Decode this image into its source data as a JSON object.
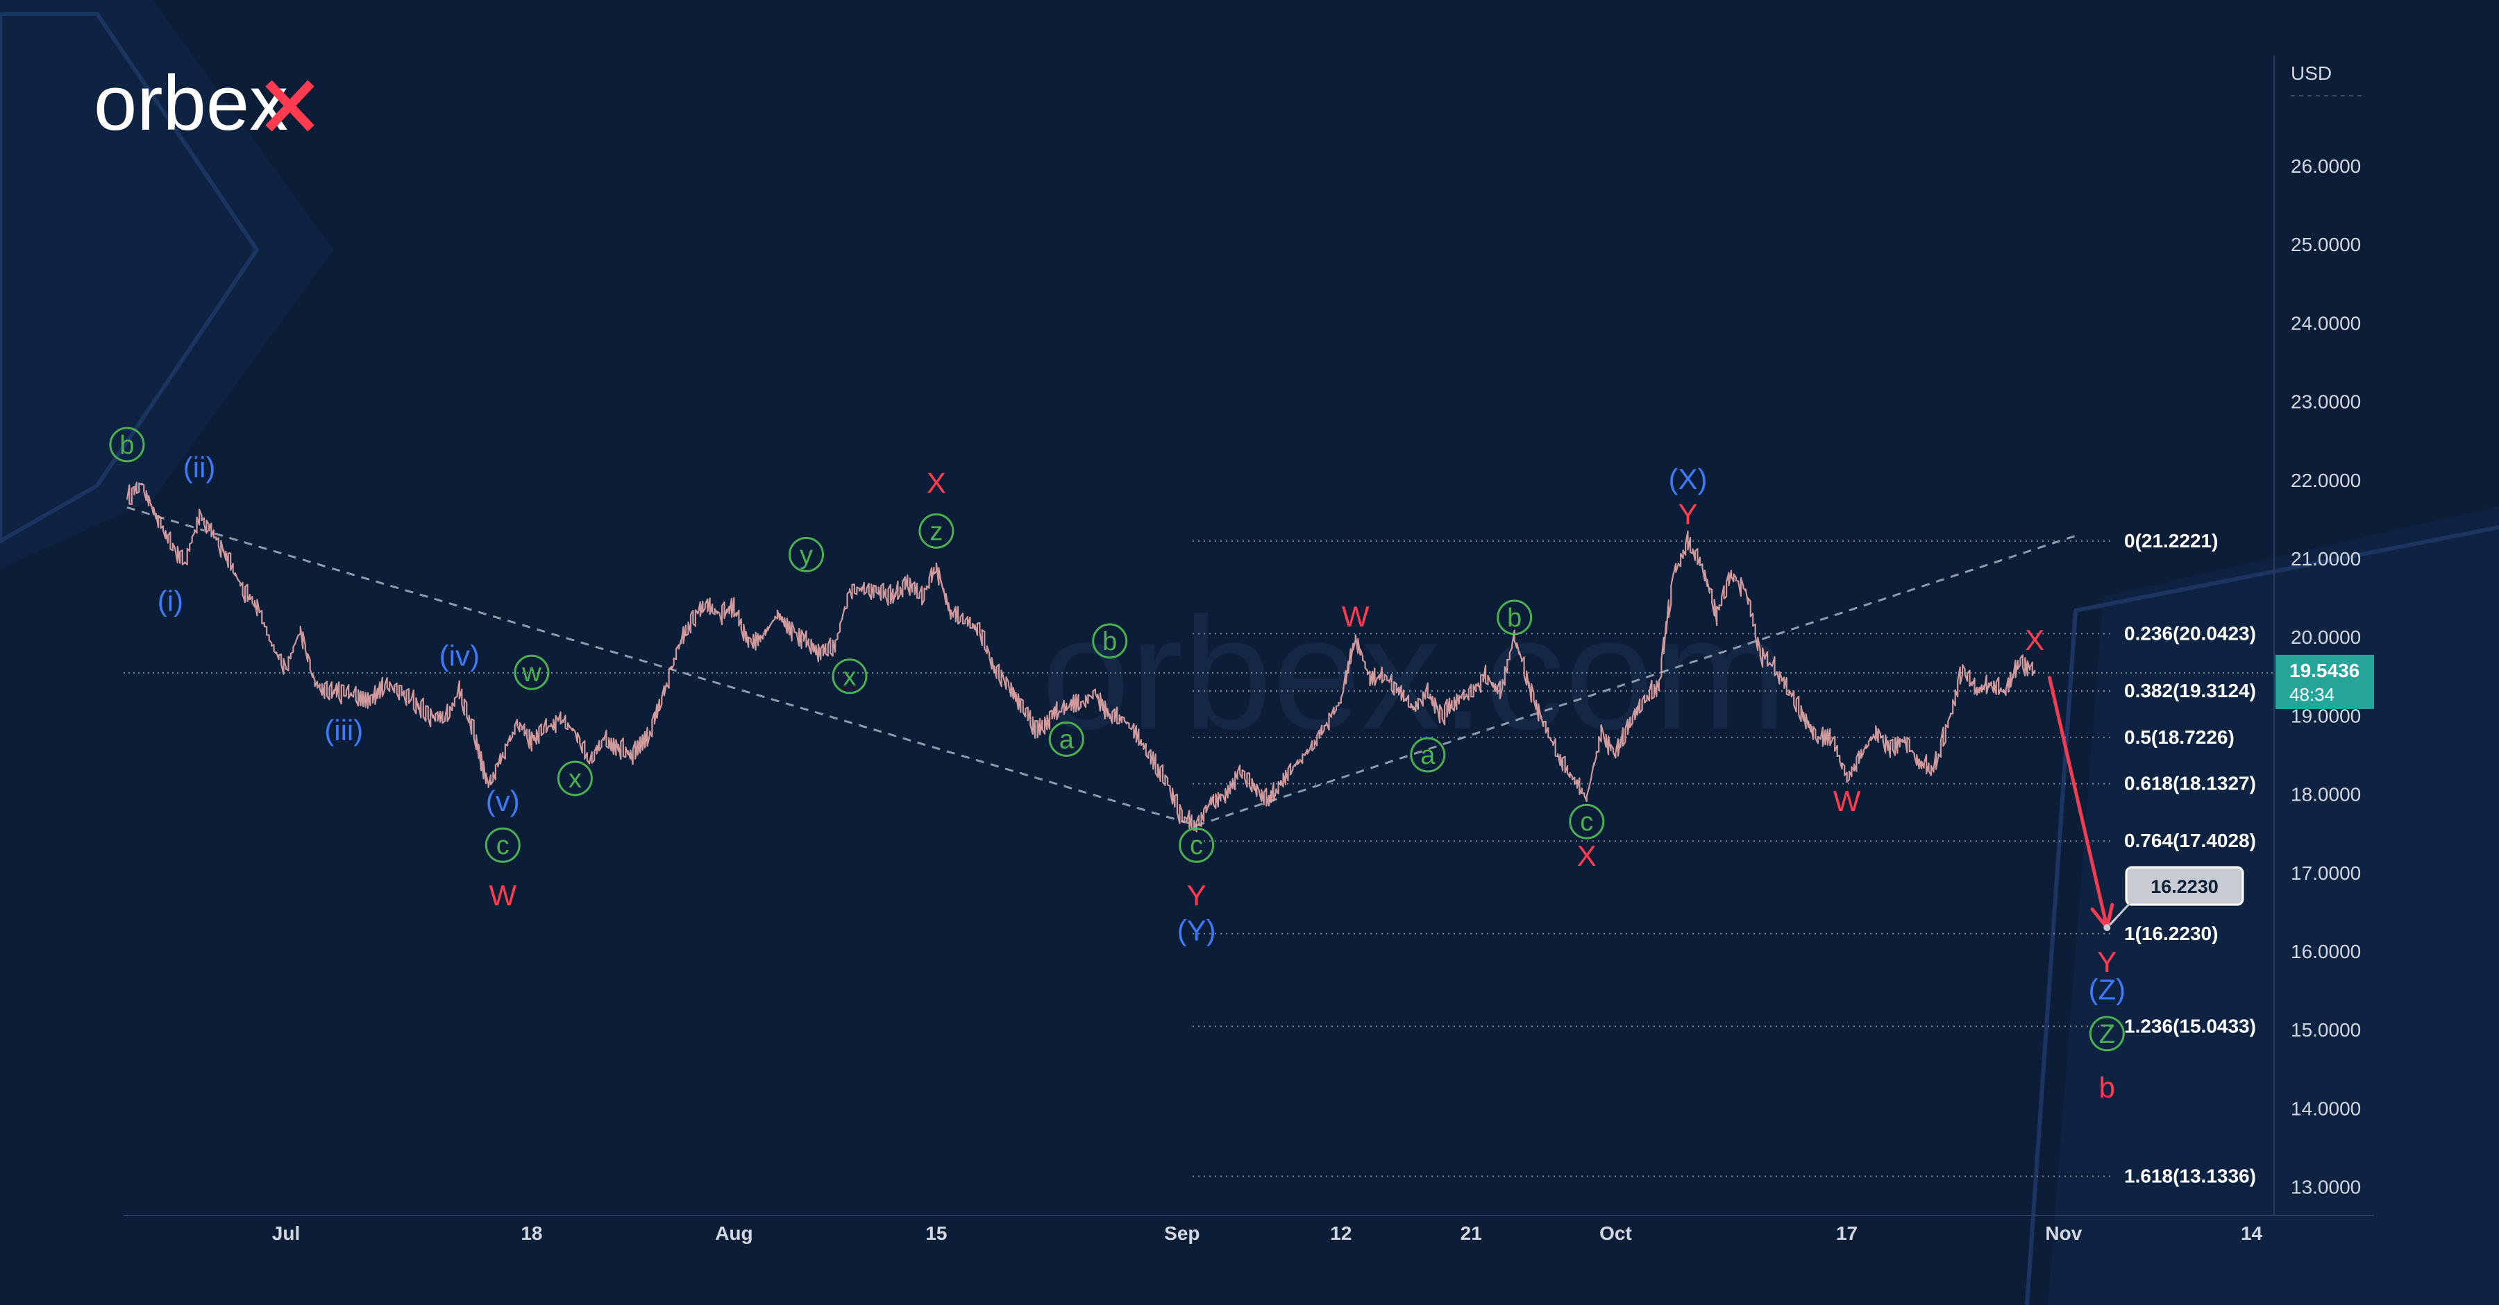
{
  "brand": {
    "logo_text": "orbex",
    "watermark_text": "orbex.com"
  },
  "colors": {
    "background": "#0c1d38",
    "candle": "#e6a9a9",
    "red_label": "#ff3b50",
    "blue_label": "#3f79f5",
    "green_label": "#4caf50",
    "price_badge": "#26a69a",
    "fib_line": "#7b8594",
    "dashed_trend": "#8f9aab",
    "projection_arrow": "#f23c52"
  },
  "icons": {
    "forecast_pointer": "arrow-head-icon"
  },
  "price_axis": {
    "currency": "USD",
    "ticks": [
      "26.0000",
      "25.0000",
      "24.0000",
      "23.0000",
      "22.0000",
      "21.0000",
      "20.0000",
      "19.0000",
      "18.0000",
      "17.0000",
      "16.0000",
      "15.0000",
      "14.0000",
      "13.0000"
    ],
    "current_price": "19.5436",
    "countdown": "48:34"
  },
  "time_axis": {
    "ticks": [
      "Jul",
      "18",
      "Aug",
      "15",
      "Sep",
      "12",
      "21",
      "Oct",
      "17",
      "Nov",
      "14"
    ]
  },
  "target_box": "16.2230",
  "chart_data": {
    "type": "line",
    "title": "",
    "xlabel": "",
    "ylabel": "USD",
    "ylim": [
      12.6,
      27.1
    ],
    "x_range": [
      "2022-06-20",
      "2022-11-16"
    ],
    "series": [
      {
        "values": [
          [
            "2022-06-20",
            21.75
          ],
          [
            "2022-06-21",
            21.95
          ],
          [
            "2022-06-22",
            21.55
          ],
          [
            "2022-06-23",
            21.2
          ],
          [
            "2022-06-24",
            20.95
          ],
          [
            "2022-06-25",
            21.55
          ],
          [
            "2022-06-26",
            21.3
          ],
          [
            "2022-06-27",
            21.0
          ],
          [
            "2022-06-28",
            20.6
          ],
          [
            "2022-06-29",
            20.4
          ],
          [
            "2022-06-30",
            19.9
          ],
          [
            "2022-07-01",
            19.6
          ],
          [
            "2022-07-02",
            20.1
          ],
          [
            "2022-07-03",
            19.4
          ],
          [
            "2022-07-04",
            19.3
          ],
          [
            "2022-07-05",
            19.3
          ],
          [
            "2022-07-06",
            19.25
          ],
          [
            "2022-07-07",
            19.2
          ],
          [
            "2022-07-08",
            19.4
          ],
          [
            "2022-07-09",
            19.3
          ],
          [
            "2022-07-10",
            19.15
          ],
          [
            "2022-07-11",
            19.0
          ],
          [
            "2022-07-12",
            18.95
          ],
          [
            "2022-07-13",
            19.3
          ],
          [
            "2022-07-14",
            18.8
          ],
          [
            "2022-07-15",
            18.1
          ],
          [
            "2022-07-16",
            18.5
          ],
          [
            "2022-07-17",
            18.9
          ],
          [
            "2022-07-18",
            18.7
          ],
          [
            "2022-07-19",
            18.85
          ],
          [
            "2022-07-20",
            18.95
          ],
          [
            "2022-07-21",
            18.8
          ],
          [
            "2022-07-22",
            18.4
          ],
          [
            "2022-07-23",
            18.7
          ],
          [
            "2022-07-24",
            18.6
          ],
          [
            "2022-07-25",
            18.5
          ],
          [
            "2022-07-26",
            18.7
          ],
          [
            "2022-07-27",
            19.2
          ],
          [
            "2022-07-28",
            19.8
          ],
          [
            "2022-07-29",
            20.2
          ],
          [
            "2022-07-30",
            20.4
          ],
          [
            "2022-07-31",
            20.3
          ],
          [
            "2022-08-01",
            20.35
          ],
          [
            "2022-08-02",
            19.95
          ],
          [
            "2022-08-03",
            20.0
          ],
          [
            "2022-08-04",
            20.3
          ],
          [
            "2022-08-05",
            20.1
          ],
          [
            "2022-08-06",
            19.95
          ],
          [
            "2022-08-07",
            19.8
          ],
          [
            "2022-08-08",
            19.9
          ],
          [
            "2022-08-09",
            20.6
          ],
          [
            "2022-08-10",
            20.6
          ],
          [
            "2022-08-11",
            20.6
          ],
          [
            "2022-08-12",
            20.5
          ],
          [
            "2022-08-13",
            20.7
          ],
          [
            "2022-08-14",
            20.5
          ],
          [
            "2022-08-15",
            20.9
          ],
          [
            "2022-08-16",
            20.3
          ],
          [
            "2022-08-17",
            20.2
          ],
          [
            "2022-08-18",
            20.1
          ],
          [
            "2022-08-19",
            19.6
          ],
          [
            "2022-08-20",
            19.4
          ],
          [
            "2022-08-21",
            19.1
          ],
          [
            "2022-08-22",
            18.8
          ],
          [
            "2022-08-23",
            19.0
          ],
          [
            "2022-08-24",
            19.1
          ],
          [
            "2022-08-25",
            19.15
          ],
          [
            "2022-08-26",
            19.3
          ],
          [
            "2022-08-27",
            19.0
          ],
          [
            "2022-08-28",
            18.95
          ],
          [
            "2022-08-29",
            18.7
          ],
          [
            "2022-08-30",
            18.4
          ],
          [
            "2022-08-31",
            18.15
          ],
          [
            "2022-09-01",
            17.7
          ],
          [
            "2022-09-02",
            17.6
          ],
          [
            "2022-09-03",
            17.9
          ],
          [
            "2022-09-04",
            18.0
          ],
          [
            "2022-09-05",
            18.3
          ],
          [
            "2022-09-06",
            18.1
          ],
          [
            "2022-09-07",
            17.9
          ],
          [
            "2022-09-08",
            18.2
          ],
          [
            "2022-09-09",
            18.4
          ],
          [
            "2022-09-10",
            18.6
          ],
          [
            "2022-09-11",
            18.9
          ],
          [
            "2022-09-12",
            19.2
          ],
          [
            "2022-09-13",
            20.0
          ],
          [
            "2022-09-14",
            19.45
          ],
          [
            "2022-09-15",
            19.5
          ],
          [
            "2022-09-16",
            19.3
          ],
          [
            "2022-09-17",
            19.1
          ],
          [
            "2022-09-18",
            19.3
          ],
          [
            "2022-09-19",
            19.0
          ],
          [
            "2022-09-20",
            19.2
          ],
          [
            "2022-09-21",
            19.3
          ],
          [
            "2022-09-22",
            19.5
          ],
          [
            "2022-09-23",
            19.3
          ],
          [
            "2022-09-24",
            20.0
          ],
          [
            "2022-09-25",
            19.4
          ],
          [
            "2022-09-26",
            18.9
          ],
          [
            "2022-09-27",
            18.5
          ],
          [
            "2022-09-28",
            18.2
          ],
          [
            "2022-09-29",
            17.95
          ],
          [
            "2022-09-30",
            18.8
          ],
          [
            "2022-10-01",
            18.5
          ],
          [
            "2022-10-02",
            18.9
          ],
          [
            "2022-10-03",
            19.2
          ],
          [
            "2022-10-04",
            19.4
          ],
          [
            "2022-10-05",
            20.8
          ],
          [
            "2022-10-06",
            21.2
          ],
          [
            "2022-10-07",
            20.9
          ],
          [
            "2022-10-08",
            20.3
          ],
          [
            "2022-10-09",
            20.8
          ],
          [
            "2022-10-10",
            20.6
          ],
          [
            "2022-10-11",
            19.8
          ],
          [
            "2022-10-12",
            19.6
          ],
          [
            "2022-10-13",
            19.3
          ],
          [
            "2022-10-14",
            19.0
          ],
          [
            "2022-10-15",
            18.7
          ],
          [
            "2022-10-16",
            18.7
          ],
          [
            "2022-10-17",
            18.2
          ],
          [
            "2022-10-18",
            18.5
          ],
          [
            "2022-10-19",
            18.8
          ],
          [
            "2022-10-20",
            18.6
          ],
          [
            "2022-10-21",
            18.7
          ],
          [
            "2022-10-22",
            18.4
          ],
          [
            "2022-10-23",
            18.3
          ],
          [
            "2022-10-24",
            18.9
          ],
          [
            "2022-10-25",
            19.6
          ],
          [
            "2022-10-26",
            19.3
          ],
          [
            "2022-10-27",
            19.4
          ],
          [
            "2022-10-28",
            19.3
          ],
          [
            "2022-10-29",
            19.7
          ],
          [
            "2022-10-30",
            19.55
          ]
        ]
      }
    ],
    "fibonacci_levels": [
      {
        "ratio": "0",
        "price": 21.2221,
        "label": "0(21.2221)"
      },
      {
        "ratio": "0.236",
        "price": 20.0423,
        "label": "0.236(20.0423)"
      },
      {
        "ratio": "0.382",
        "price": 19.3124,
        "label": "0.382(19.3124)"
      },
      {
        "ratio": "0.5",
        "price": 18.7226,
        "label": "0.5(18.7226)"
      },
      {
        "ratio": "0.618",
        "price": 18.1327,
        "label": "0.618(18.1327)"
      },
      {
        "ratio": "0.764",
        "price": 17.4028,
        "label": "0.764(17.4028)"
      },
      {
        "ratio": "1",
        "price": 16.223,
        "label": "1(16.2230)"
      },
      {
        "ratio": "1.236",
        "price": 15.0433,
        "label": "1.236(15.0433)"
      },
      {
        "ratio": "1.618",
        "price": 13.1336,
        "label": "1.618(13.1336)"
      }
    ],
    "trend_lines": [
      {
        "style": "dashed",
        "from": [
          "2022-06-20",
          21.65
        ],
        "to": [
          "2022-09-02",
          17.6
        ]
      },
      {
        "style": "dashed",
        "from": [
          "2022-09-02",
          17.6
        ],
        "to": [
          "2022-11-02",
          21.3
        ]
      }
    ],
    "projection": {
      "from": [
        "2022-10-31",
        19.5
      ],
      "to": [
        "2022-11-04",
        16.3
      ]
    },
    "wave_labels": [
      {
        "text": "b",
        "color": "green",
        "circled": true,
        "x": "2022-06-20",
        "y": 22.45
      },
      {
        "text": "(ii)",
        "color": "blue",
        "x": "2022-06-25",
        "y": 22.15
      },
      {
        "text": "(i)",
        "color": "blue",
        "x": "2022-06-23",
        "y": 20.45
      },
      {
        "text": "(iii)",
        "color": "blue",
        "x": "2022-07-05",
        "y": 18.8
      },
      {
        "text": "(iv)",
        "color": "blue",
        "x": "2022-07-13",
        "y": 19.75
      },
      {
        "text": "(v)",
        "color": "blue",
        "x": "2022-07-16",
        "y": 17.9
      },
      {
        "text": "c",
        "color": "green",
        "circled": true,
        "x": "2022-07-16",
        "y": 17.35
      },
      {
        "text": "W",
        "color": "red",
        "x": "2022-07-16",
        "y": 16.7
      },
      {
        "text": "w",
        "color": "green",
        "circled": true,
        "x": "2022-07-18",
        "y": 19.55
      },
      {
        "text": "x",
        "color": "green",
        "circled": true,
        "x": "2022-07-21",
        "y": 18.2
      },
      {
        "text": "y",
        "color": "green",
        "circled": true,
        "x": "2022-08-06",
        "y": 21.05
      },
      {
        "text": "x",
        "color": "green",
        "circled": true,
        "x": "2022-08-09",
        "y": 19.5
      },
      {
        "text": "z",
        "color": "green",
        "circled": true,
        "x": "2022-08-15",
        "y": 21.35
      },
      {
        "text": "X",
        "color": "red",
        "x": "2022-08-15",
        "y": 21.95
      },
      {
        "text": "b",
        "color": "green",
        "circled": true,
        "x": "2022-08-27",
        "y": 19.95
      },
      {
        "text": "a",
        "color": "green",
        "circled": true,
        "x": "2022-08-24",
        "y": 18.7
      },
      {
        "text": "c",
        "color": "green",
        "circled": true,
        "x": "2022-09-02",
        "y": 17.35
      },
      {
        "text": "Y",
        "color": "red",
        "x": "2022-09-02",
        "y": 16.7
      },
      {
        "text": "(Y)",
        "color": "blue",
        "x": "2022-09-02",
        "y": 16.25
      },
      {
        "text": "W",
        "color": "red",
        "x": "2022-09-13",
        "y": 20.25
      },
      {
        "text": "a",
        "color": "green",
        "circled": true,
        "x": "2022-09-18",
        "y": 18.5
      },
      {
        "text": "b",
        "color": "green",
        "circled": true,
        "x": "2022-09-24",
        "y": 20.25
      },
      {
        "text": "c",
        "color": "green",
        "circled": true,
        "x": "2022-09-29",
        "y": 17.65
      },
      {
        "text": "X",
        "color": "red",
        "x": "2022-09-29",
        "y": 17.2
      },
      {
        "text": "(X)",
        "color": "blue",
        "x": "2022-10-06",
        "y": 22.0
      },
      {
        "text": "Y",
        "color": "red",
        "x": "2022-10-06",
        "y": 21.55
      },
      {
        "text": "W",
        "color": "red",
        "x": "2022-10-17",
        "y": 17.9
      },
      {
        "text": "X",
        "color": "red",
        "x": "2022-10-30",
        "y": 19.95
      },
      {
        "text": "Y",
        "color": "red",
        "x": "2022-11-04",
        "y": 15.85
      },
      {
        "text": "(Z)",
        "color": "blue",
        "x": "2022-11-04",
        "y": 15.5
      },
      {
        "text": "Z",
        "color": "green",
        "circled": true,
        "x": "2022-11-04",
        "y": 14.95
      },
      {
        "text": "b",
        "color": "red",
        "x": "2022-11-04",
        "y": 14.25
      }
    ]
  }
}
